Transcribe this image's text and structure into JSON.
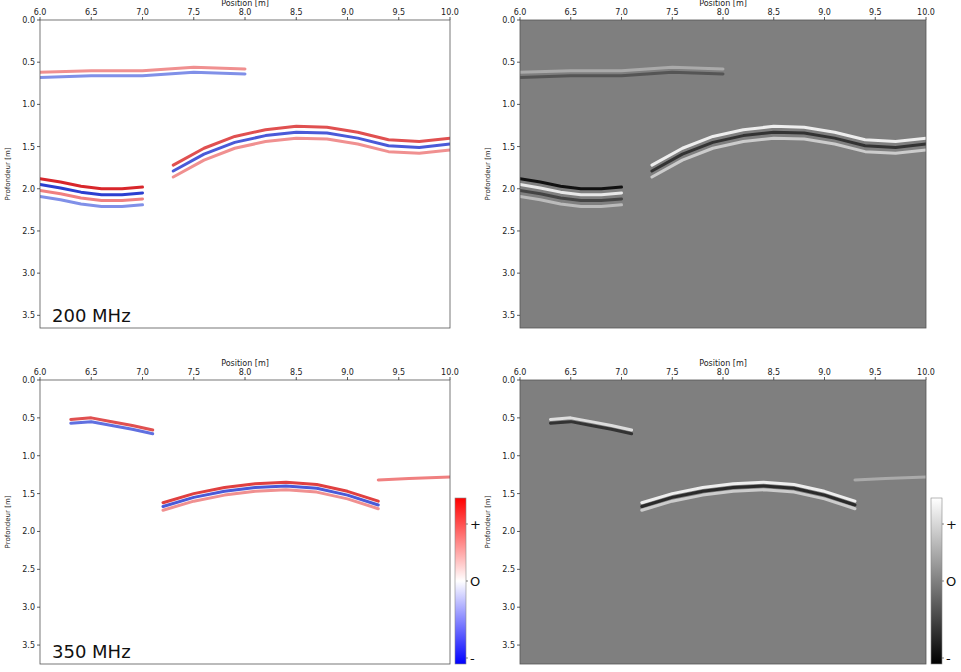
{
  "chart_data": [
    {
      "type": "line",
      "x_label": "Position [m]",
      "y_label": "Profondeur [m]",
      "annotation": "200 MHz",
      "xlim": [
        6.0,
        10.0
      ],
      "ylim": [
        0,
        3.65
      ],
      "xticks": [
        {
          "value": 6.0,
          "label": "6.0"
        },
        {
          "value": 6.5,
          "label": "6.5"
        },
        {
          "value": 7.0,
          "label": "7.0"
        },
        {
          "value": 7.5,
          "label": "7.5"
        },
        {
          "value": 8.0,
          "label": "8.0"
        },
        {
          "value": 8.5,
          "label": "8.5"
        },
        {
          "value": 9.0,
          "label": "9.0"
        },
        {
          "value": 9.5,
          "label": "9.5"
        },
        {
          "value": 10.0,
          "label": "10.0"
        }
      ],
      "yticks": [
        {
          "value": 0,
          "label": "0.0"
        },
        {
          "value": 0.5,
          "label": "0.5"
        },
        {
          "value": 1.0,
          "label": "1.0"
        },
        {
          "value": 1.5,
          "label": "1.5"
        },
        {
          "value": 2.0,
          "label": "2.0"
        },
        {
          "value": 2.5,
          "label": "2.5"
        },
        {
          "value": 3.0,
          "label": "3.0"
        },
        {
          "value": 3.5,
          "label": "3.5"
        }
      ],
      "series": [
        {
          "color": "#d8262b",
          "x": [
            6.0,
            6.2,
            6.4,
            6.6,
            6.8,
            7.0
          ],
          "values": [
            1.88,
            1.92,
            1.97,
            2.0,
            2.0,
            1.98
          ]
        },
        {
          "color": "#2b3fd0",
          "x": [
            6.0,
            6.2,
            6.4,
            6.6,
            6.8,
            7.0
          ],
          "values": [
            1.95,
            1.99,
            2.04,
            2.07,
            2.07,
            2.05
          ]
        },
        {
          "color": "#f08080",
          "x": [
            6.0,
            6.2,
            6.4,
            6.6,
            6.8,
            7.0
          ],
          "values": [
            2.02,
            2.06,
            2.11,
            2.14,
            2.14,
            2.12
          ]
        },
        {
          "color": "#8090e8",
          "x": [
            6.0,
            6.2,
            6.4,
            6.6,
            6.8,
            7.0
          ],
          "values": [
            2.09,
            2.13,
            2.18,
            2.21,
            2.21,
            2.19
          ]
        },
        {
          "color": "#e05050",
          "x": [
            7.3,
            7.6,
            7.9,
            8.2,
            8.5,
            8.8,
            9.1,
            9.4,
            9.7,
            10.0
          ],
          "values": [
            1.72,
            1.52,
            1.38,
            1.3,
            1.26,
            1.27,
            1.33,
            1.42,
            1.44,
            1.4
          ]
        },
        {
          "color": "#4a5ad8",
          "x": [
            7.3,
            7.6,
            7.9,
            8.2,
            8.5,
            8.8,
            9.1,
            9.4,
            9.7,
            10.0
          ],
          "values": [
            1.79,
            1.59,
            1.45,
            1.37,
            1.33,
            1.34,
            1.4,
            1.49,
            1.51,
            1.47
          ]
        },
        {
          "color": "#f09090",
          "x": [
            7.3,
            7.6,
            7.9,
            8.2,
            8.5,
            8.8,
            9.1,
            9.4,
            9.7,
            10.0
          ],
          "values": [
            1.86,
            1.66,
            1.52,
            1.44,
            1.4,
            1.41,
            1.47,
            1.56,
            1.58,
            1.54
          ]
        },
        {
          "color": "#f09090",
          "x": [
            6.0,
            6.5,
            7.0,
            7.5,
            8.0
          ],
          "values": [
            0.62,
            0.6,
            0.6,
            0.56,
            0.58
          ]
        },
        {
          "color": "#8090e8",
          "x": [
            6.0,
            6.5,
            7.0,
            7.5,
            8.0
          ],
          "values": [
            0.68,
            0.66,
            0.66,
            0.62,
            0.64
          ]
        }
      ]
    },
    {
      "type": "line",
      "x_label": "Position [m]",
      "y_label": "Profondeur [m]",
      "xlim": [
        6.0,
        10.0
      ],
      "ylim": [
        0,
        3.65
      ],
      "xticks": [
        {
          "value": 6.0,
          "label": "6.0"
        },
        {
          "value": 6.5,
          "label": "6.5"
        },
        {
          "value": 7.0,
          "label": "7.0"
        },
        {
          "value": 7.5,
          "label": "7.5"
        },
        {
          "value": 8.0,
          "label": "8.0"
        },
        {
          "value": 8.5,
          "label": "8.5"
        },
        {
          "value": 9.0,
          "label": "9.0"
        },
        {
          "value": 9.5,
          "label": "9.5"
        },
        {
          "value": 10.0,
          "label": "10.0"
        }
      ],
      "yticks": [
        {
          "value": 0,
          "label": "0.0"
        },
        {
          "value": 0.5,
          "label": "0.5"
        },
        {
          "value": 1.0,
          "label": "1.0"
        },
        {
          "value": 1.5,
          "label": "1.5"
        },
        {
          "value": 2.0,
          "label": "2.0"
        },
        {
          "value": 2.5,
          "label": "2.5"
        },
        {
          "value": 3.0,
          "label": "3.0"
        },
        {
          "value": 3.5,
          "label": "3.5"
        }
      ],
      "series": [
        {
          "color": "#111111",
          "x": [
            6.0,
            6.2,
            6.4,
            6.6,
            6.8,
            7.0
          ],
          "values": [
            1.88,
            1.92,
            1.97,
            2.0,
            2.0,
            1.98
          ]
        },
        {
          "color": "#e8e8e8",
          "x": [
            6.0,
            6.2,
            6.4,
            6.6,
            6.8,
            7.0
          ],
          "values": [
            1.95,
            1.99,
            2.04,
            2.07,
            2.07,
            2.05
          ]
        },
        {
          "color": "#444444",
          "x": [
            6.0,
            6.2,
            6.4,
            6.6,
            6.8,
            7.0
          ],
          "values": [
            2.02,
            2.06,
            2.11,
            2.14,
            2.14,
            2.12
          ]
        },
        {
          "color": "#bbbbbb",
          "x": [
            6.0,
            6.2,
            6.4,
            6.6,
            6.8,
            7.0
          ],
          "values": [
            2.09,
            2.13,
            2.18,
            2.21,
            2.21,
            2.19
          ]
        },
        {
          "color": "#eeeeee",
          "x": [
            7.3,
            7.6,
            7.9,
            8.2,
            8.5,
            8.8,
            9.1,
            9.4,
            9.7,
            10.0
          ],
          "values": [
            1.72,
            1.52,
            1.38,
            1.3,
            1.26,
            1.27,
            1.33,
            1.42,
            1.44,
            1.4
          ]
        },
        {
          "color": "#333333",
          "x": [
            7.3,
            7.6,
            7.9,
            8.2,
            8.5,
            8.8,
            9.1,
            9.4,
            9.7,
            10.0
          ],
          "values": [
            1.79,
            1.59,
            1.45,
            1.37,
            1.33,
            1.34,
            1.4,
            1.49,
            1.51,
            1.47
          ]
        },
        {
          "color": "#cccccc",
          "x": [
            7.3,
            7.6,
            7.9,
            8.2,
            8.5,
            8.8,
            9.1,
            9.4,
            9.7,
            10.0
          ],
          "values": [
            1.86,
            1.66,
            1.52,
            1.44,
            1.4,
            1.41,
            1.47,
            1.56,
            1.58,
            1.54
          ]
        },
        {
          "color": "#aaaaaa",
          "x": [
            6.0,
            6.5,
            7.0,
            7.5,
            8.0
          ],
          "values": [
            0.62,
            0.6,
            0.6,
            0.56,
            0.58
          ]
        },
        {
          "color": "#555555",
          "x": [
            6.0,
            6.5,
            7.0,
            7.5,
            8.0
          ],
          "values": [
            0.68,
            0.66,
            0.66,
            0.62,
            0.64
          ]
        }
      ]
    },
    {
      "type": "line",
      "x_label": "Position [m]",
      "y_label": "Profondeur [m]",
      "annotation": "350 MHz",
      "xlim": [
        6.0,
        10.0
      ],
      "ylim": [
        0,
        3.75
      ],
      "xticks": [
        {
          "value": 6.0,
          "label": "6.0"
        },
        {
          "value": 6.5,
          "label": "6.5"
        },
        {
          "value": 7.0,
          "label": "7.0"
        },
        {
          "value": 7.5,
          "label": "7.5"
        },
        {
          "value": 8.0,
          "label": "8.0"
        },
        {
          "value": 8.5,
          "label": "8.5"
        },
        {
          "value": 9.0,
          "label": "9.0"
        },
        {
          "value": 9.5,
          "label": "9.5"
        },
        {
          "value": 10.0,
          "label": "10.0"
        }
      ],
      "yticks": [
        {
          "value": 0,
          "label": "0.0"
        },
        {
          "value": 0.5,
          "label": "0.5"
        },
        {
          "value": 1.0,
          "label": "1.0"
        },
        {
          "value": 1.5,
          "label": "1.5"
        },
        {
          "value": 2.0,
          "label": "2.0"
        },
        {
          "value": 2.5,
          "label": "2.5"
        },
        {
          "value": 3.0,
          "label": "3.0"
        },
        {
          "value": 3.5,
          "label": "3.5"
        }
      ],
      "series": [
        {
          "color": "#e04040",
          "x": [
            7.2,
            7.5,
            7.8,
            8.1,
            8.4,
            8.7,
            9.0,
            9.3
          ],
          "values": [
            1.62,
            1.5,
            1.42,
            1.37,
            1.35,
            1.38,
            1.47,
            1.6
          ]
        },
        {
          "color": "#4a5ad8",
          "x": [
            7.2,
            7.5,
            7.8,
            8.1,
            8.4,
            8.7,
            9.0,
            9.3
          ],
          "values": [
            1.67,
            1.55,
            1.47,
            1.42,
            1.4,
            1.43,
            1.52,
            1.65
          ]
        },
        {
          "color": "#f09090",
          "x": [
            7.2,
            7.5,
            7.8,
            8.1,
            8.4,
            8.7,
            9.0,
            9.3
          ],
          "values": [
            1.72,
            1.6,
            1.52,
            1.47,
            1.45,
            1.48,
            1.57,
            1.7
          ]
        },
        {
          "color": "#e05050",
          "x": [
            6.3,
            6.5,
            6.7,
            6.9,
            7.1
          ],
          "values": [
            0.52,
            0.5,
            0.55,
            0.6,
            0.66
          ]
        },
        {
          "color": "#6070e0",
          "x": [
            6.3,
            6.5,
            6.7,
            6.9,
            7.1
          ],
          "values": [
            0.57,
            0.55,
            0.6,
            0.65,
            0.71
          ]
        },
        {
          "color": "#f08080",
          "x": [
            9.3,
            9.6,
            10.0
          ],
          "values": [
            1.32,
            1.3,
            1.28
          ]
        }
      ],
      "colorbar": {
        "range": [
          -1,
          1
        ],
        "colors": [
          "#0000ff",
          "#ffffff",
          "#ff0000"
        ],
        "ticks": [
          {
            "value": 1,
            "label": "+"
          },
          {
            "value": 0,
            "label": "O"
          },
          {
            "value": -1,
            "label": "-"
          }
        ]
      }
    },
    {
      "type": "line",
      "x_label": "Position [m]",
      "y_label": "Profondeur [m]",
      "xlim": [
        6.0,
        10.0
      ],
      "ylim": [
        0,
        3.75
      ],
      "xticks": [
        {
          "value": 6.0,
          "label": "6.0"
        },
        {
          "value": 6.5,
          "label": "6.5"
        },
        {
          "value": 7.0,
          "label": "7.0"
        },
        {
          "value": 7.5,
          "label": "7.5"
        },
        {
          "value": 8.0,
          "label": "8.0"
        },
        {
          "value": 8.5,
          "label": "8.5"
        },
        {
          "value": 9.0,
          "label": "9.0"
        },
        {
          "value": 9.5,
          "label": "9.5"
        },
        {
          "value": 10.0,
          "label": "10.0"
        }
      ],
      "yticks": [
        {
          "value": 0,
          "label": "0.0"
        },
        {
          "value": 0.5,
          "label": "0.5"
        },
        {
          "value": 1.0,
          "label": "1.0"
        },
        {
          "value": 1.5,
          "label": "1.5"
        },
        {
          "value": 2.0,
          "label": "2.0"
        },
        {
          "value": 2.5,
          "label": "2.5"
        },
        {
          "value": 3.0,
          "label": "3.0"
        },
        {
          "value": 3.5,
          "label": "3.5"
        }
      ],
      "series": [
        {
          "color": "#eeeeee",
          "x": [
            7.2,
            7.5,
            7.8,
            8.1,
            8.4,
            8.7,
            9.0,
            9.3
          ],
          "values": [
            1.62,
            1.5,
            1.42,
            1.37,
            1.35,
            1.38,
            1.47,
            1.6
          ]
        },
        {
          "color": "#2a2a2a",
          "x": [
            7.2,
            7.5,
            7.8,
            8.1,
            8.4,
            8.7,
            9.0,
            9.3
          ],
          "values": [
            1.67,
            1.55,
            1.47,
            1.42,
            1.4,
            1.43,
            1.52,
            1.65
          ]
        },
        {
          "color": "#cccccc",
          "x": [
            7.2,
            7.5,
            7.8,
            8.1,
            8.4,
            8.7,
            9.0,
            9.3
          ],
          "values": [
            1.72,
            1.6,
            1.52,
            1.47,
            1.45,
            1.48,
            1.57,
            1.7
          ]
        },
        {
          "color": "#dddddd",
          "x": [
            6.3,
            6.5,
            6.7,
            6.9,
            7.1
          ],
          "values": [
            0.52,
            0.5,
            0.55,
            0.6,
            0.66
          ]
        },
        {
          "color": "#333333",
          "x": [
            6.3,
            6.5,
            6.7,
            6.9,
            7.1
          ],
          "values": [
            0.57,
            0.55,
            0.6,
            0.65,
            0.71
          ]
        },
        {
          "color": "#aaaaaa",
          "x": [
            9.3,
            9.6,
            10.0
          ],
          "values": [
            1.32,
            1.3,
            1.28
          ]
        }
      ],
      "colorbar": {
        "range": [
          -1,
          1
        ],
        "colors": [
          "#000000",
          "#808080",
          "#ffffff"
        ],
        "ticks": [
          {
            "value": 1,
            "label": "+"
          },
          {
            "value": 0,
            "label": "O"
          },
          {
            "value": -1,
            "label": "-"
          }
        ]
      }
    }
  ]
}
